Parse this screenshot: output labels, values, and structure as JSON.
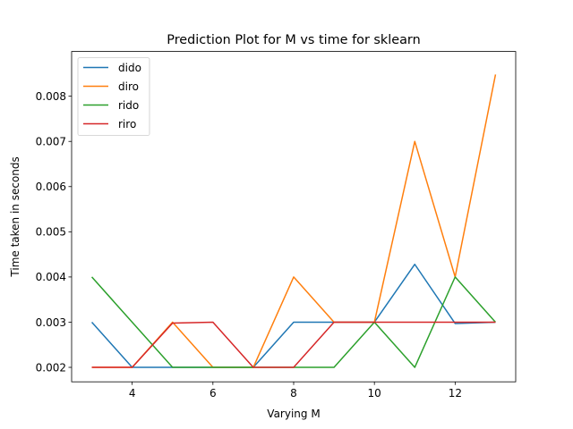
{
  "chart_data": {
    "type": "line",
    "title": "Prediction Plot for M vs time for sklearn",
    "xlabel": "Varying M",
    "ylabel": "Time taken in seconds",
    "x": [
      3,
      4,
      5,
      6,
      7,
      8,
      9,
      10,
      11,
      12,
      13
    ],
    "xlim": [
      2.5,
      13.5
    ],
    "ylim": [
      0.00168,
      0.00899
    ],
    "xticks": [
      4,
      6,
      8,
      10,
      12
    ],
    "yticks": [
      0.002,
      0.003,
      0.004,
      0.005,
      0.006,
      0.007,
      0.008
    ],
    "ytick_labels": [
      "0.002",
      "0.003",
      "0.004",
      "0.005",
      "0.006",
      "0.007",
      "0.008"
    ],
    "grid": false,
    "legend_position": "upper-left",
    "series": [
      {
        "name": "dido",
        "color": "#1f77b4",
        "values": [
          0.003,
          0.002,
          0.002,
          0.002,
          0.002,
          0.003,
          0.003,
          0.003,
          0.00428,
          0.00297,
          0.003
        ]
      },
      {
        "name": "diro",
        "color": "#ff7f0e",
        "values": [
          0.002,
          0.002,
          0.003,
          0.002,
          0.002,
          0.004,
          0.003,
          0.003,
          0.007,
          0.004,
          0.00848
        ]
      },
      {
        "name": "rido",
        "color": "#2ca02c",
        "values": [
          0.004,
          0.003,
          0.002,
          0.002,
          0.002,
          0.002,
          0.002,
          0.003,
          0.002,
          0.004,
          0.003
        ]
      },
      {
        "name": "riro",
        "color": "#d62728",
        "values": [
          0.002,
          0.002,
          0.00298,
          0.003,
          0.002,
          0.002,
          0.003,
          0.003,
          0.003,
          0.003,
          0.003
        ]
      }
    ]
  }
}
